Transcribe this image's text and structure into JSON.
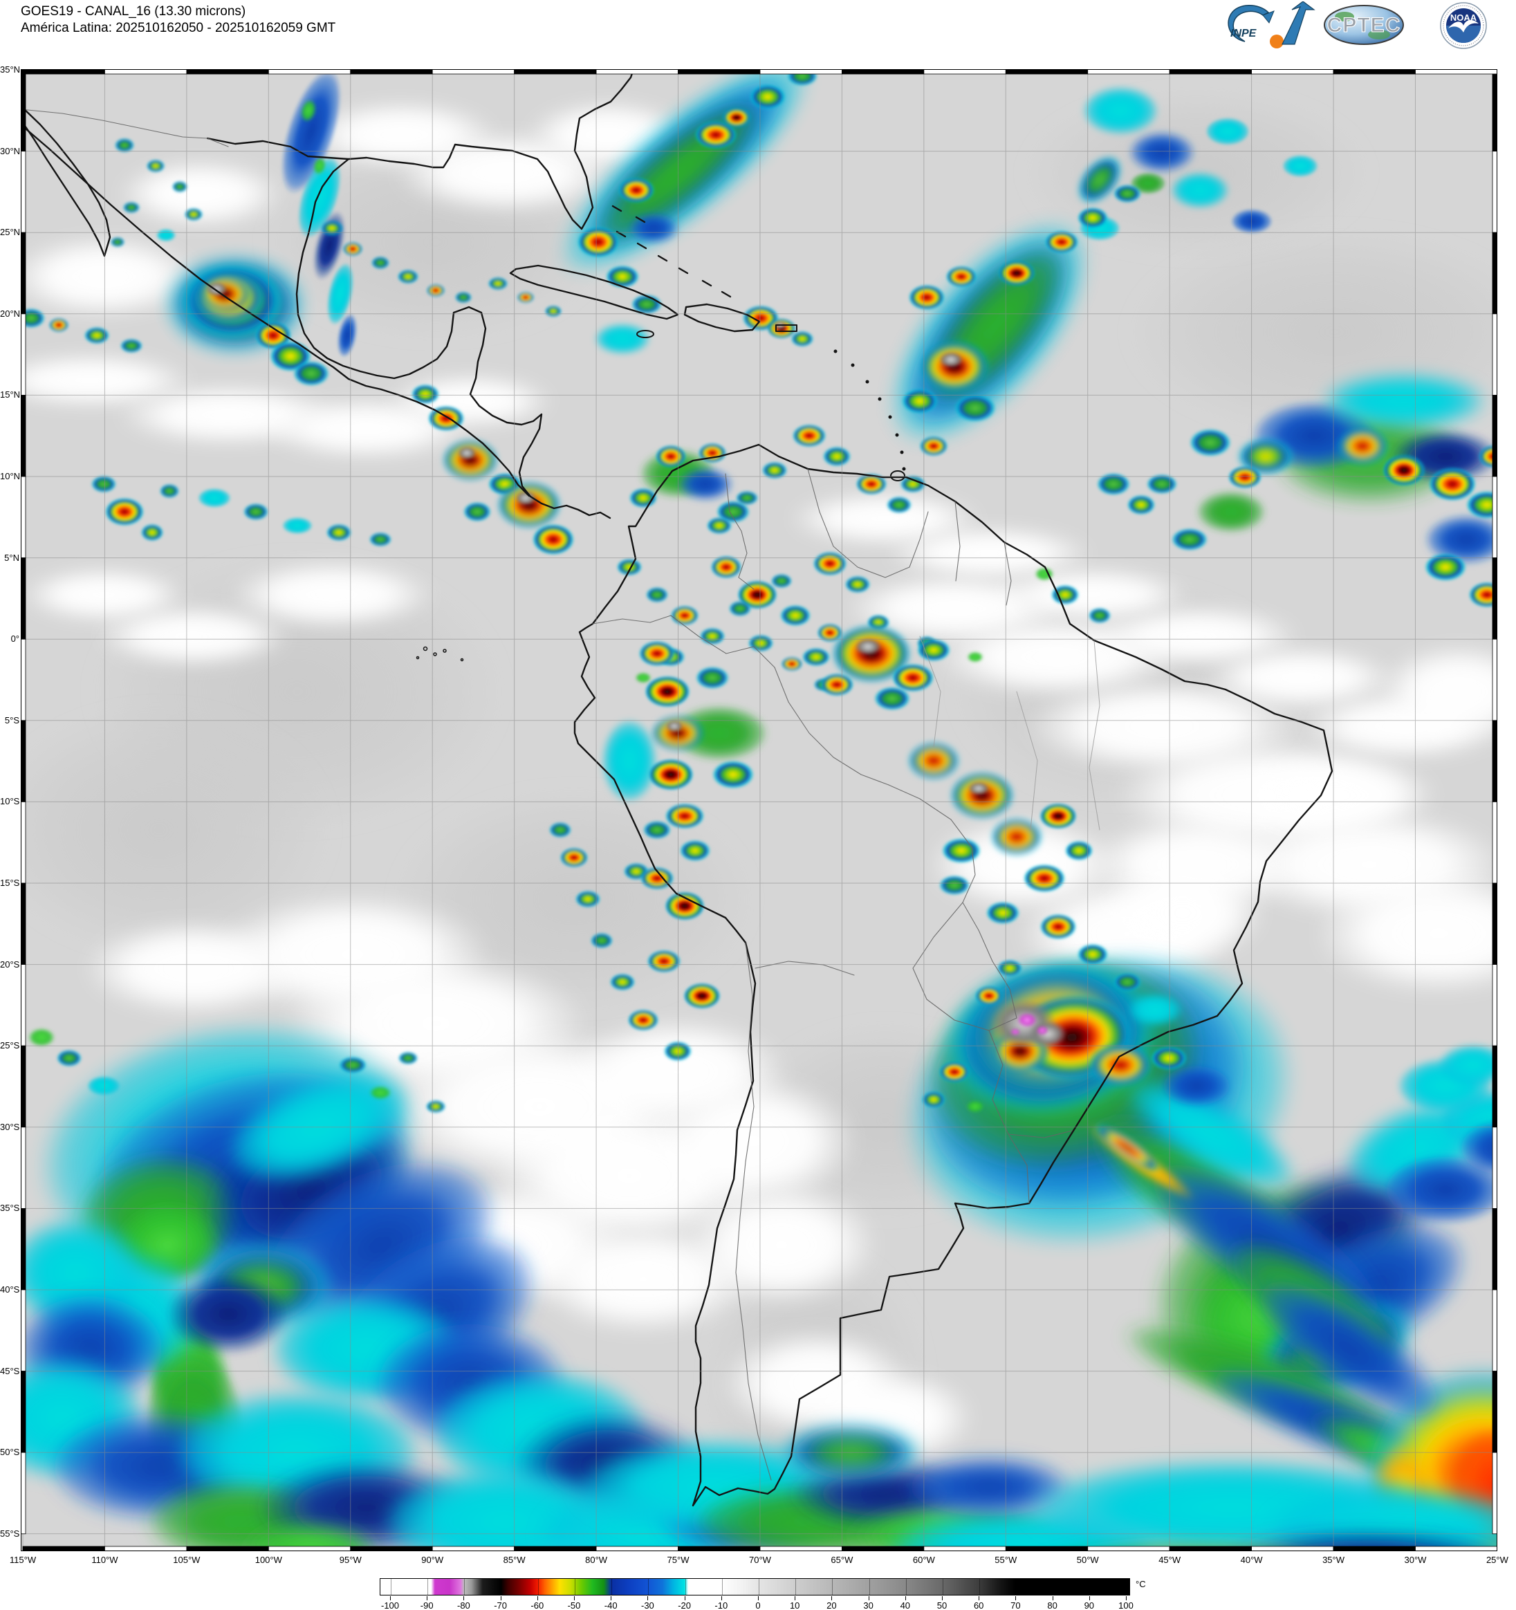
{
  "header": {
    "line1": "GOES19 - CANAL_16 (13.30 microns)",
    "line2": "América Latina: 202510162050 - 202510162059 GMT"
  },
  "logos": {
    "inpe": "INPE",
    "cptec": "CPTEC",
    "noaa": "NOAA"
  },
  "axes": {
    "lat_labels": [
      "35°N",
      "30°N",
      "25°N",
      "20°N",
      "15°N",
      "10°N",
      "5°N",
      "0°",
      "5°S",
      "10°S",
      "15°S",
      "20°S",
      "25°S",
      "30°S",
      "35°S",
      "40°S",
      "45°S",
      "50°S",
      "55°S"
    ],
    "lon_labels": [
      "115°W",
      "110°W",
      "105°W",
      "100°W",
      "95°W",
      "90°W",
      "85°W",
      "80°W",
      "75°W",
      "70°W",
      "65°W",
      "60°W",
      "55°W",
      "50°W",
      "45°W",
      "40°W",
      "35°W",
      "30°W",
      "25°W"
    ]
  },
  "colorbar": {
    "unit": "°C",
    "tick_labels": [
      "-100",
      "-90",
      "-80",
      "-70",
      "-60",
      "-50",
      "-40",
      "-30",
      "-20",
      "-10",
      "0",
      "10",
      "20",
      "30",
      "40",
      "50",
      "60",
      "70",
      "80",
      "90",
      "100"
    ],
    "stops": [
      [
        -100,
        "#ffffff"
      ],
      [
        -89,
        "#ffffff"
      ],
      [
        -88,
        "#cf39cf"
      ],
      [
        -84,
        "#c934c9"
      ],
      [
        -81,
        "#df76df"
      ],
      [
        -80,
        "#bdbdbd"
      ],
      [
        -78,
        "#9a9a9a"
      ],
      [
        -76,
        "#474747"
      ],
      [
        -75,
        "#1c1c1c"
      ],
      [
        -70,
        "#000000"
      ],
      [
        -68,
        "#400000"
      ],
      [
        -65,
        "#7d0000"
      ],
      [
        -62,
        "#c40000"
      ],
      [
        -60,
        "#f31b00"
      ],
      [
        -58,
        "#ff6600"
      ],
      [
        -56,
        "#ffa300"
      ],
      [
        -54,
        "#ffe000"
      ],
      [
        -51,
        "#c9de00"
      ],
      [
        -48,
        "#6bca00"
      ],
      [
        -45,
        "#20b920"
      ],
      [
        -42,
        "#149114"
      ],
      [
        -40,
        "#0a2fa2"
      ],
      [
        -35,
        "#0d40c2"
      ],
      [
        -30,
        "#1254d4"
      ],
      [
        -26,
        "#0f73da"
      ],
      [
        -23,
        "#00b5e2"
      ],
      [
        -20,
        "#00e3e3"
      ],
      [
        -19,
        "#ffffff"
      ],
      [
        -10,
        "#ffffff"
      ],
      [
        -4,
        "#f1f1f1"
      ],
      [
        0,
        "#e5e5e5"
      ],
      [
        10,
        "#cecece"
      ],
      [
        20,
        "#b8b8b8"
      ],
      [
        30,
        "#a1a1a1"
      ],
      [
        40,
        "#898989"
      ],
      [
        50,
        "#6a6a6a"
      ],
      [
        60,
        "#3e3e3e"
      ],
      [
        66,
        "#151515"
      ],
      [
        70,
        "#000000"
      ],
      [
        100,
        "#000000"
      ]
    ]
  }
}
